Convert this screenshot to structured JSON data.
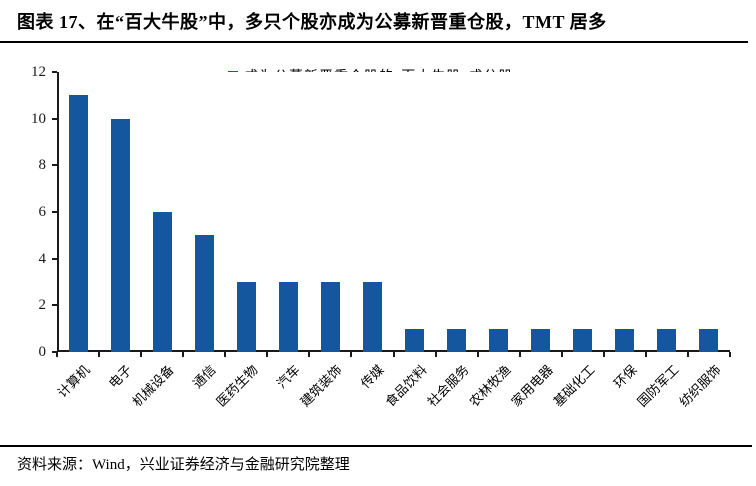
{
  "page": {
    "title": "图表 17、在“百大牛股”中，多只个股亦成为公募新晋重仓股，TMT 居多",
    "footer_source": "资料来源：Wind，兴业证券经济与金融研究院整理"
  },
  "colors": {
    "bar": "#15579F",
    "axis": "#1a1a1a",
    "divider": "#000000",
    "background": "#ffffff"
  },
  "chart_data": {
    "type": "bar",
    "title": "",
    "categories": [
      "计算机",
      "电子",
      "机械设备",
      "通信",
      "医药生物",
      "汽车",
      "建筑装饰",
      "传媒",
      "食品饮料",
      "社会服务",
      "农林牧渔",
      "家用电器",
      "基础化工",
      "环保",
      "国防军工",
      "纺织服饰"
    ],
    "series": [
      {
        "name": "成为公募新晋重仓股的“百大牛股”成分股",
        "values": [
          11,
          10,
          6,
          5,
          3,
          3,
          3,
          3,
          1,
          1,
          1,
          1,
          1,
          1,
          1,
          1
        ]
      }
    ],
    "xlabel": "",
    "ylabel": "",
    "ylim": [
      0,
      12
    ],
    "yticks": [
      0,
      2,
      4,
      6,
      8,
      10,
      12
    ],
    "grid": false,
    "legend_position": "top-center-inside",
    "bar_color": "#15579F"
  }
}
